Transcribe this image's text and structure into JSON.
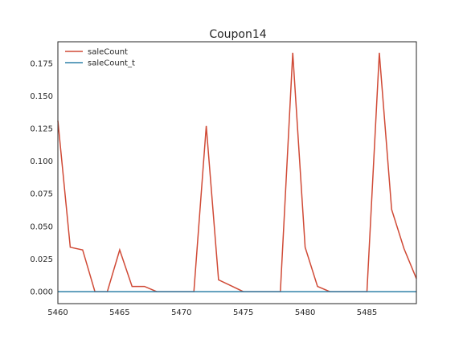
{
  "chart_data": {
    "type": "line",
    "title": "Coupon14",
    "xlabel": "",
    "ylabel": "",
    "xlim": [
      5460,
      5489
    ],
    "ylim": [
      -0.0092,
      0.1915
    ],
    "xticks": [
      5460,
      5465,
      5470,
      5475,
      5480,
      5485
    ],
    "yticks": [
      0.0,
      0.025,
      0.05,
      0.075,
      0.1,
      0.125,
      0.15,
      0.175
    ],
    "ytick_labels": [
      "0.000",
      "0.025",
      "0.050",
      "0.075",
      "0.100",
      "0.125",
      "0.150",
      "0.175"
    ],
    "grid": false,
    "legend_position": "top-left",
    "x": [
      5460,
      5461,
      5462,
      5463,
      5464,
      5465,
      5466,
      5467,
      5468,
      5469,
      5470,
      5471,
      5472,
      5473,
      5474,
      5475,
      5476,
      5477,
      5478,
      5479,
      5480,
      5481,
      5482,
      5483,
      5484,
      5485,
      5486,
      5487,
      5488,
      5489
    ],
    "series": [
      {
        "name": "saleCount",
        "color": "#d04a36",
        "values": [
          0.131,
          0.034,
          0.032,
          0.0,
          0.0,
          0.032,
          0.004,
          0.004,
          0.0,
          0.0,
          0.0,
          0.0,
          0.127,
          0.009,
          0.0045,
          0.0,
          0.0,
          0.0,
          0.0,
          0.183,
          0.034,
          0.004,
          0.0,
          0.0,
          0.0,
          0.0,
          0.183,
          0.063,
          0.033,
          0.01
        ]
      },
      {
        "name": "saleCount_t",
        "color": "#2e80a8",
        "values": [
          0,
          0,
          0,
          0,
          0,
          0,
          0,
          0,
          0,
          0,
          0,
          0,
          0,
          0,
          0,
          0,
          0,
          0,
          0,
          0,
          0,
          0,
          0,
          0,
          0,
          0,
          0,
          0,
          0,
          0
        ]
      }
    ]
  }
}
